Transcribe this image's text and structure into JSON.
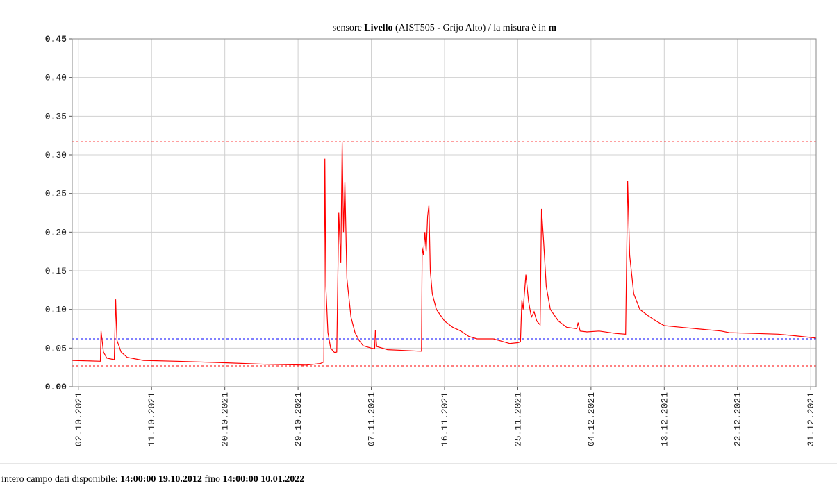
{
  "chart_data": {
    "type": "line",
    "title_parts": [
      {
        "text": "sensore ",
        "bold": false
      },
      {
        "text": "Livello",
        "bold": true
      },
      {
        "text": " (AIST505 ",
        "bold": false
      },
      {
        "text": "-",
        "bold": true
      },
      {
        "text": " Grijo Alto) / la misura è in ",
        "bold": false
      },
      {
        "text": "m",
        "bold": true
      }
    ],
    "x": [
      "2021-10-01T06:00",
      "2021-10-04T17:00",
      "2021-10-04T19:00",
      "2021-10-05T02:00",
      "2021-10-05T12:00",
      "2021-10-06T10:00",
      "2021-10-06T14:00",
      "2021-10-06T18:00",
      "2021-10-07T06:00",
      "2021-10-08T00:00",
      "2021-10-10T00:00",
      "2021-10-14T00:00",
      "2021-10-20T00:00",
      "2021-10-25T00:00",
      "2021-10-30T00:00",
      "2021-10-31T18:00",
      "2021-11-01T04:00",
      "2021-11-01T07:00",
      "2021-11-01T10:00",
      "2021-11-01T16:00",
      "2021-11-02T00:00",
      "2021-11-02T12:00",
      "2021-11-02T18:00",
      "2021-11-03T00:00",
      "2021-11-03T06:00",
      "2021-11-03T10:00",
      "2021-11-03T14:00",
      "2021-11-03T18:00",
      "2021-11-04T00:00",
      "2021-11-04T12:00",
      "2021-11-05T00:00",
      "2021-11-05T12:00",
      "2021-11-06T00:00",
      "2021-11-07T00:00",
      "2021-11-07T10:00",
      "2021-11-07T12:00",
      "2021-11-07T16:00",
      "2021-11-09T00:00",
      "2021-11-11T00:00",
      "2021-11-13T00:00",
      "2021-11-13T04:00",
      "2021-11-13T06:00",
      "2021-11-13T10:00",
      "2021-11-13T14:00",
      "2021-11-13T18:00",
      "2021-11-13T22:00",
      "2021-11-14T02:00",
      "2021-11-14T06:00",
      "2021-11-14T12:00",
      "2021-11-15T00:00",
      "2021-11-16T00:00",
      "2021-11-17T00:00",
      "2021-11-18T00:00",
      "2021-11-19T00:00",
      "2021-11-20T00:00",
      "2021-11-22T00:00",
      "2021-11-23T00:00",
      "2021-11-24T00:00",
      "2021-11-25T00:00",
      "2021-11-25T08:00",
      "2021-11-25T12:00",
      "2021-11-25T16:00",
      "2021-11-26T00:00",
      "2021-11-26T08:00",
      "2021-11-26T16:00",
      "2021-11-27T00:00",
      "2021-11-27T08:00",
      "2021-11-27T18:00",
      "2021-11-27T22:00",
      "2021-11-28T04:00",
      "2021-11-28T12:00",
      "2021-11-29T00:00",
      "2021-11-30T00:00",
      "2021-12-01T00:00",
      "2021-12-02T06:00",
      "2021-12-02T10:00",
      "2021-12-02T16:00",
      "2021-12-03T12:00",
      "2021-12-05T00:00",
      "2021-12-07T00:00",
      "2021-12-08T06:00",
      "2021-12-08T12:00",
      "2021-12-08T18:00",
      "2021-12-09T06:00",
      "2021-12-10T00:00",
      "2021-12-11T00:00",
      "2021-12-12T00:00",
      "2021-12-13T00:00",
      "2021-12-15T00:00",
      "2021-12-18T00:00",
      "2021-12-20T00:00",
      "2021-12-21T00:00",
      "2021-12-24T00:00",
      "2021-12-27T00:00",
      "2021-12-29T00:00",
      "2021-12-31T16:00"
    ],
    "series": [
      {
        "color": "#ff0000",
        "values": [
          0.034,
          0.033,
          0.072,
          0.045,
          0.037,
          0.035,
          0.113,
          0.06,
          0.045,
          0.038,
          0.034,
          0.033,
          0.031,
          0.029,
          0.028,
          0.03,
          0.032,
          0.295,
          0.13,
          0.07,
          0.05,
          0.044,
          0.045,
          0.225,
          0.16,
          0.316,
          0.2,
          0.265,
          0.14,
          0.09,
          0.07,
          0.06,
          0.053,
          0.05,
          0.049,
          0.073,
          0.052,
          0.048,
          0.047,
          0.046,
          0.046,
          0.18,
          0.17,
          0.2,
          0.175,
          0.22,
          0.235,
          0.15,
          0.12,
          0.1,
          0.085,
          0.077,
          0.072,
          0.065,
          0.062,
          0.062,
          0.059,
          0.056,
          0.057,
          0.058,
          0.112,
          0.1,
          0.145,
          0.11,
          0.09,
          0.097,
          0.085,
          0.08,
          0.23,
          0.19,
          0.13,
          0.1,
          0.085,
          0.077,
          0.075,
          0.083,
          0.072,
          0.071,
          0.072,
          0.069,
          0.068,
          0.266,
          0.17,
          0.12,
          0.1,
          0.092,
          0.085,
          0.079,
          0.077,
          0.074,
          0.072,
          0.07,
          0.069,
          0.068,
          0.066,
          0.063
        ]
      }
    ],
    "reference_lines": [
      {
        "value": 0.317,
        "color": "#ff0000"
      },
      {
        "value": 0.062,
        "color": "#0000ff"
      },
      {
        "value": 0.027,
        "color": "#ff0000"
      }
    ],
    "xlim": [
      "2021-10-01T06:00",
      "2021-12-31T16:00"
    ],
    "xticks": [
      {
        "value": "2021-10-02T00:00",
        "label": "02.10.2021"
      },
      {
        "value": "2021-10-11T00:00",
        "label": "11.10.2021"
      },
      {
        "value": "2021-10-20T00:00",
        "label": "20.10.2021"
      },
      {
        "value": "2021-10-29T00:00",
        "label": "29.10.2021"
      },
      {
        "value": "2021-11-07T00:00",
        "label": "07.11.2021"
      },
      {
        "value": "2021-11-16T00:00",
        "label": "16.11.2021"
      },
      {
        "value": "2021-11-25T00:00",
        "label": "25.11.2021"
      },
      {
        "value": "2021-12-04T00:00",
        "label": "04.12.2021"
      },
      {
        "value": "2021-12-13T00:00",
        "label": "13.12.2021"
      },
      {
        "value": "2021-12-22T00:00",
        "label": "22.12.2021"
      },
      {
        "value": "2021-12-31T00:00",
        "label": "31.12.2021"
      }
    ],
    "ylim": [
      0,
      0.45
    ],
    "yticks": [
      {
        "value": 0,
        "label": "0.00"
      },
      {
        "value": 0.05,
        "label": "0.05"
      },
      {
        "value": 0.1,
        "label": "0.10"
      },
      {
        "value": 0.15,
        "label": "0.15"
      },
      {
        "value": 0.2,
        "label": "0.20"
      },
      {
        "value": 0.25,
        "label": "0.25"
      },
      {
        "value": 0.3,
        "label": "0.30"
      },
      {
        "value": 0.35,
        "label": "0.35"
      },
      {
        "value": 0.4,
        "label": "0.40"
      },
      {
        "value": 0.45,
        "label": "0.45"
      }
    ],
    "grid": true
  },
  "footer_parts": [
    {
      "text": "intero campo dati disponibile: ",
      "bold": false
    },
    {
      "text": "14:00:00 19.10.2012",
      "bold": true
    },
    {
      "text": " fino ",
      "bold": false
    },
    {
      "text": "14:00:00 10.01.2022",
      "bold": true
    }
  ]
}
